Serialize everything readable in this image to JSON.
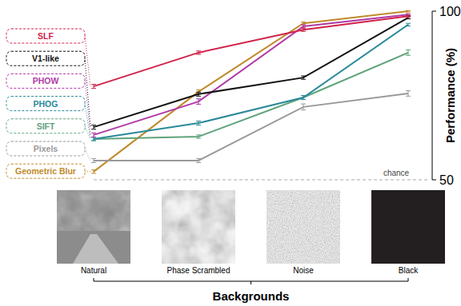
{
  "chart_data": {
    "type": "line",
    "x_label": "Backgrounds",
    "y_label": "Performance (%)",
    "categories": [
      "Natural",
      "Phase Scrambled",
      "Noise",
      "Black"
    ],
    "ylim": [
      50,
      100
    ],
    "yticks": [
      50,
      100
    ],
    "legend": "left",
    "marker": "none",
    "annotations": [
      {
        "text": "chance",
        "y": 50
      }
    ],
    "series": [
      {
        "name": "SLF",
        "color": "#d0234a",
        "values": [
          77.7,
          87.7,
          94.5,
          98.5
        ],
        "errors": [
          0.6,
          0.5,
          0.5,
          0.4
        ]
      },
      {
        "name": "V1-like",
        "color": "#111111",
        "values": [
          65.6,
          75.4,
          80.3,
          98.1
        ],
        "errors": [
          0.6,
          0.6,
          0.5,
          0.4
        ]
      },
      {
        "name": "PHOW",
        "color": "#b03aa8",
        "values": [
          63.3,
          73.2,
          95.5,
          99.0
        ],
        "errors": [
          0.6,
          0.8,
          0.5,
          0.3
        ]
      },
      {
        "name": "PHOG",
        "color": "#2a8a9a",
        "values": [
          62.1,
          66.8,
          74.4,
          96.0
        ],
        "errors": [
          0.5,
          0.6,
          0.6,
          0.4
        ]
      },
      {
        "name": "SIFT",
        "color": "#5fa37c",
        "values": [
          62.1,
          62.8,
          74.4,
          87.7
        ],
        "errors": [
          0.5,
          0.5,
          0.6,
          0.8
        ]
      },
      {
        "name": "Pixels",
        "color": "#999999",
        "values": [
          55.7,
          55.7,
          71.6,
          75.6
        ],
        "errors": [
          0.6,
          0.6,
          0.9,
          0.8
        ]
      },
      {
        "name": "Geometric Blur",
        "color": "#c08a2c",
        "values": [
          52.4,
          76.1,
          96.4,
          100.0
        ],
        "errors": [
          0.5,
          0.6,
          0.4,
          0.2
        ]
      }
    ]
  }
}
